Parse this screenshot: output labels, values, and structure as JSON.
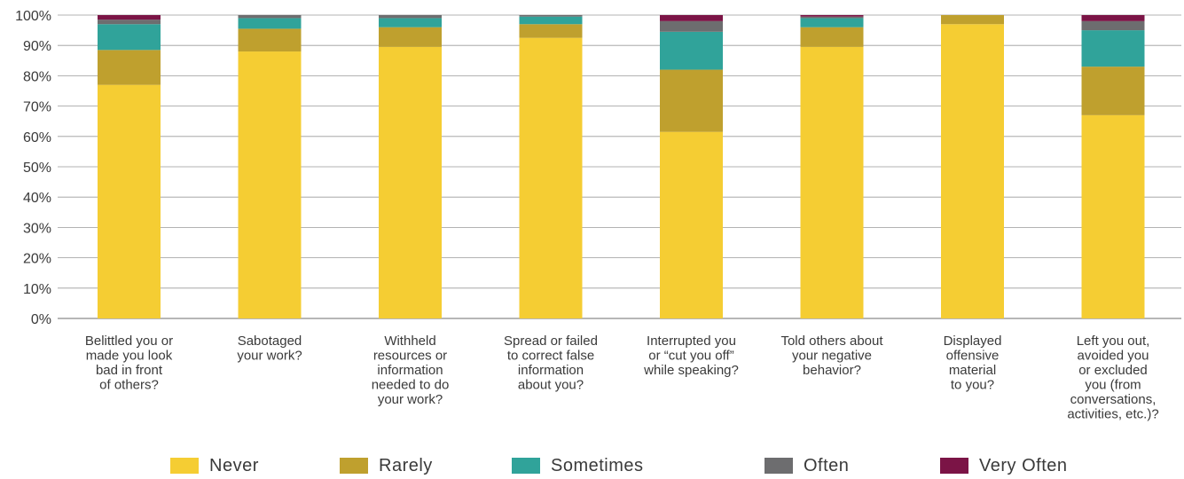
{
  "chart_data": {
    "type": "bar",
    "stacked": true,
    "title": "",
    "xlabel": "",
    "ylabel": "",
    "ylim": [
      0,
      100
    ],
    "yticks": [
      "0%",
      "10%",
      "20%",
      "30%",
      "40%",
      "50%",
      "60%",
      "70%",
      "80%",
      "90%",
      "100%"
    ],
    "grid": true,
    "legend_position": "bottom",
    "categories": [
      [
        "Belittled you or",
        "made you look",
        "bad in front",
        "of others?"
      ],
      [
        "Sabotaged",
        "your work?"
      ],
      [
        "Withheld",
        "resources or",
        "information",
        "needed to do",
        "your work?"
      ],
      [
        "Spread or failed",
        "to correct false",
        "information",
        "about you?"
      ],
      [
        "Interrupted you",
        "or “cut you off”",
        "while speaking?"
      ],
      [
        "Told others about",
        "your negative",
        "behavior?"
      ],
      [
        "Displayed",
        "offensive",
        "material",
        "to you?"
      ],
      [
        "Left you out,",
        "avoided you",
        "or excluded",
        "you (from",
        "conversations,",
        "activities, etc.)?"
      ]
    ],
    "series": [
      {
        "name": "Never",
        "color": "#f5cd33",
        "values": [
          77,
          88,
          89.5,
          92.5,
          61.5,
          89.5,
          97,
          67
        ]
      },
      {
        "name": "Rarely",
        "color": "#bfa02e",
        "values": [
          11.5,
          7.5,
          6.5,
          4.5,
          20.5,
          6.5,
          3,
          16
        ]
      },
      {
        "name": "Sometimes",
        "color": "#30a39a",
        "values": [
          8.5,
          3.5,
          3,
          2.5,
          12.5,
          3,
          0,
          12
        ]
      },
      {
        "name": "Often",
        "color": "#6d6d6f",
        "values": [
          1.5,
          1,
          1,
          0.5,
          3.5,
          0.5,
          0,
          3
        ]
      },
      {
        "name": "Very Often",
        "color": "#7b1446",
        "values": [
          1.5,
          0,
          0,
          0,
          2,
          0.5,
          0,
          2
        ]
      }
    ]
  }
}
